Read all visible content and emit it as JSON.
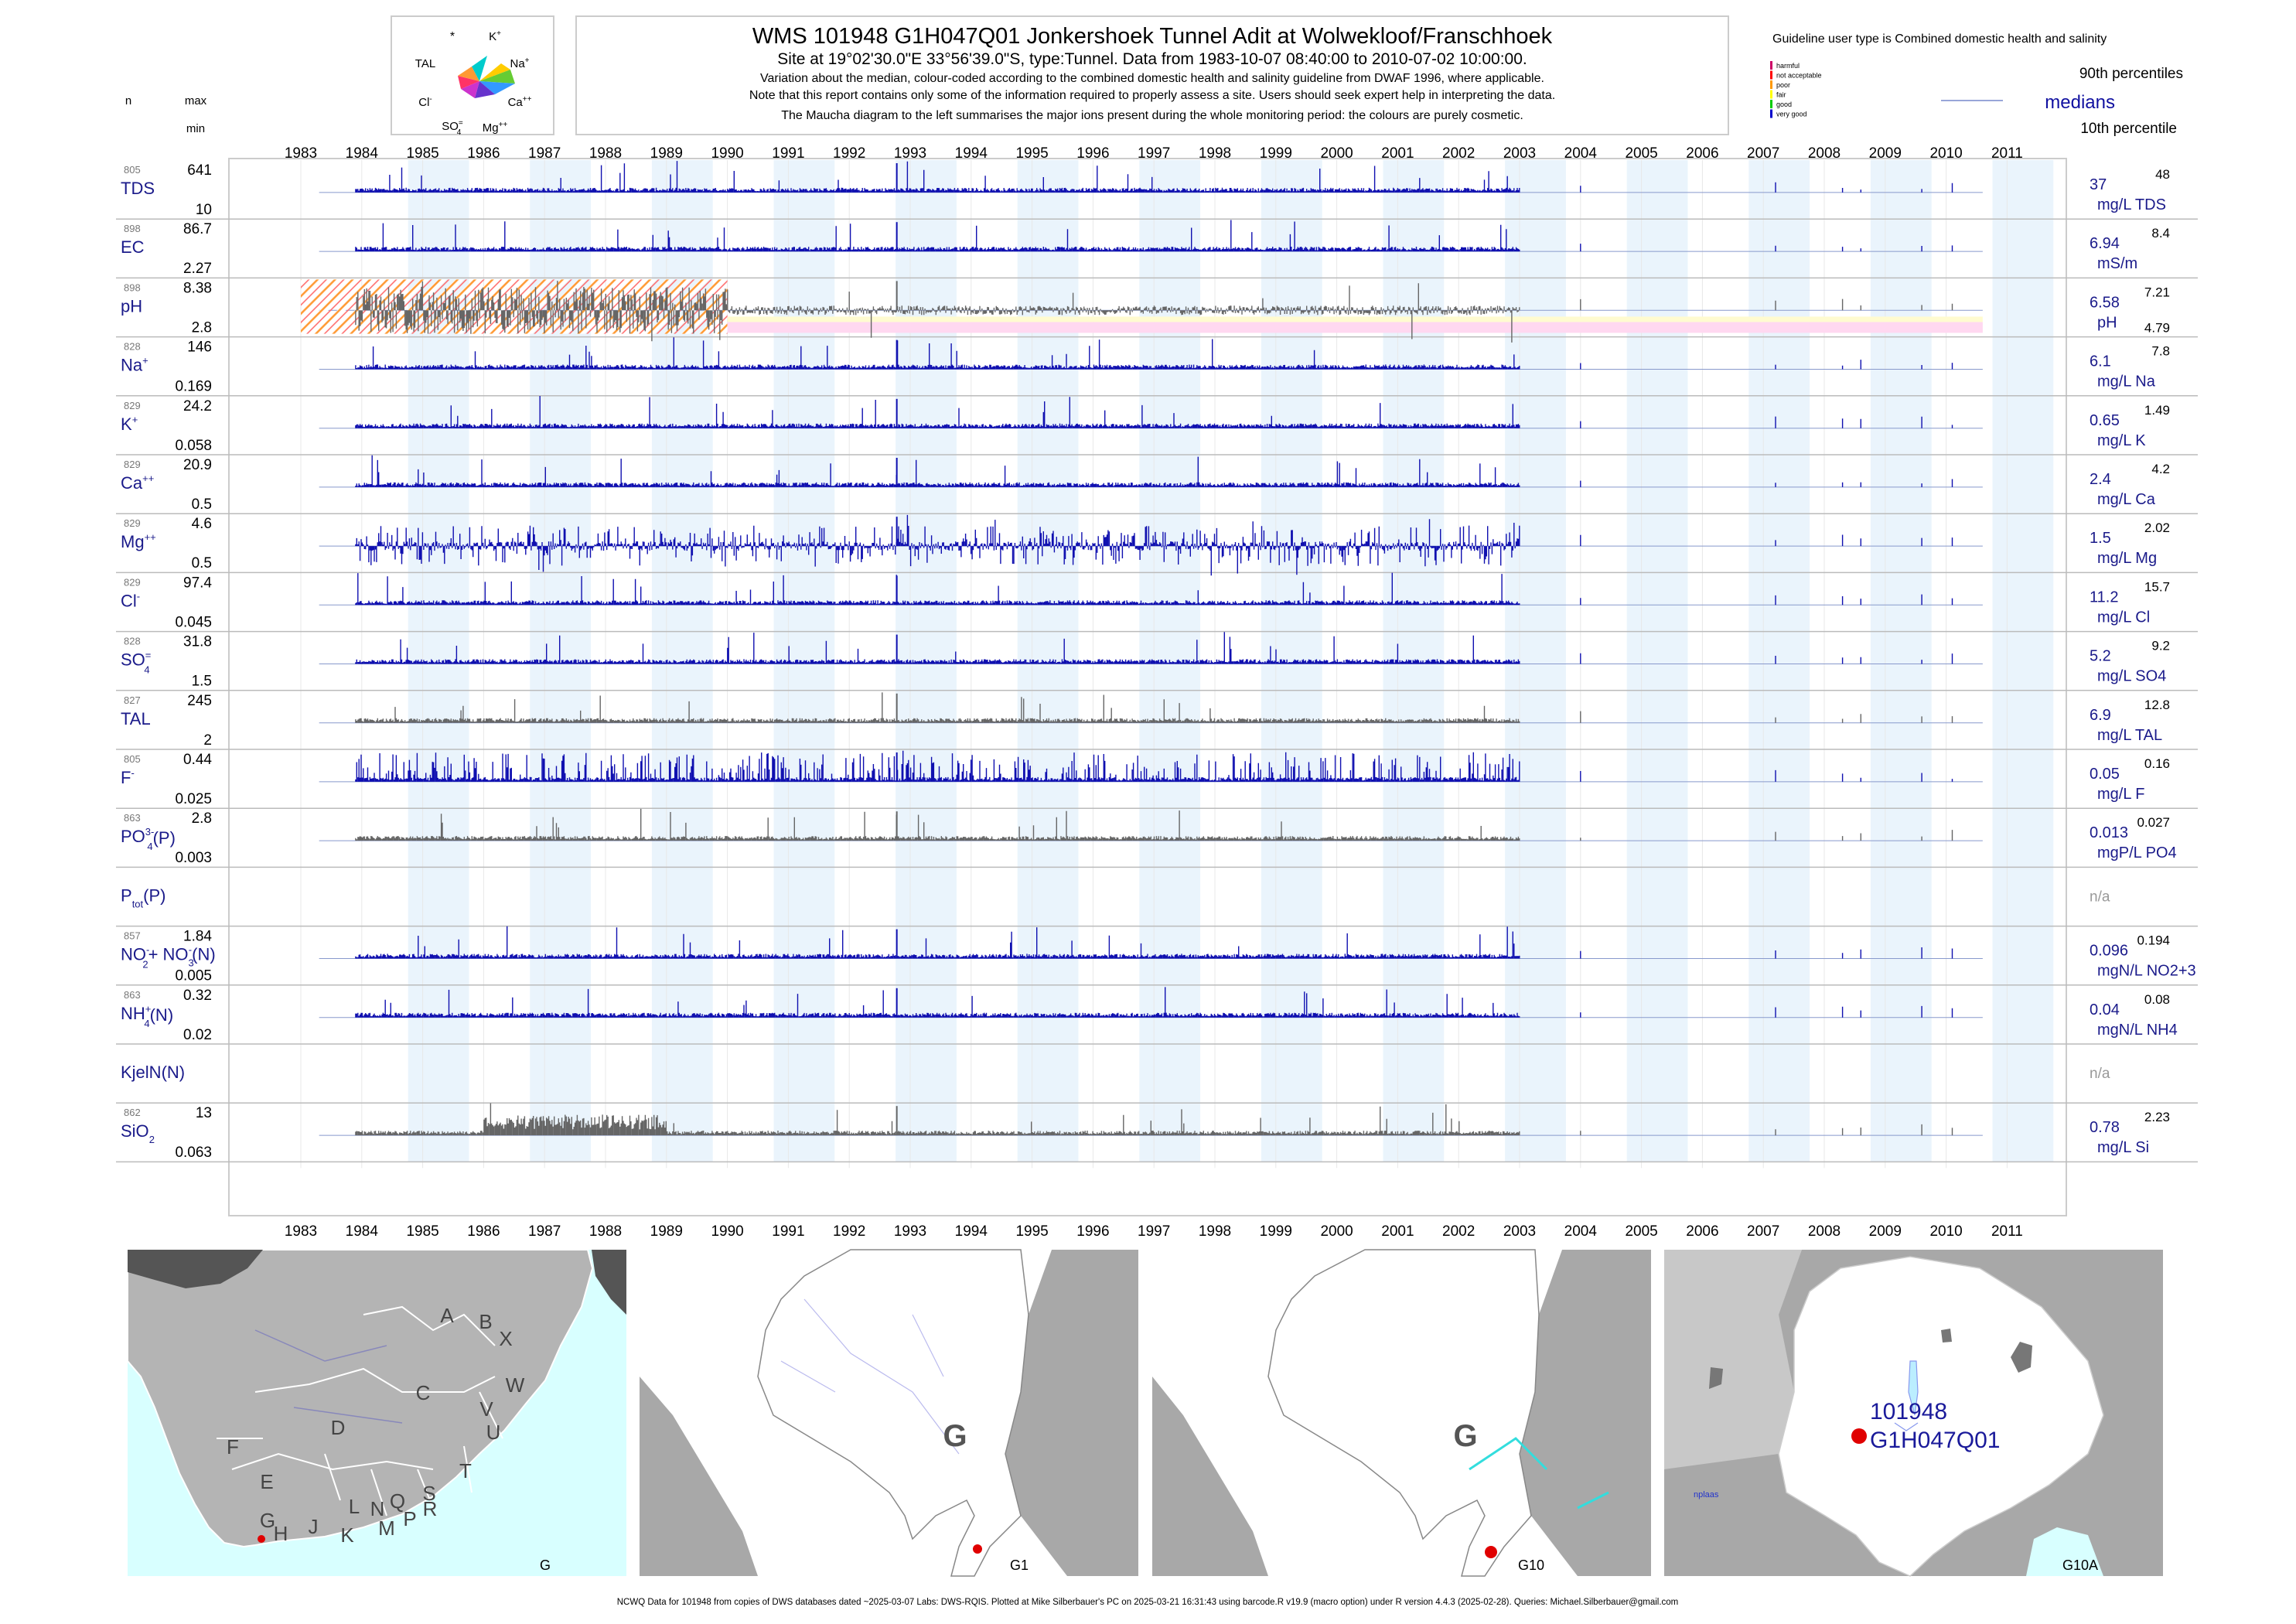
{
  "header": {
    "title": "WMS 101948 G1H047Q01 Jonkershoek Tunnel Adit at Wolwekloof/Franschhoek",
    "line1": "Site at 19°02'30.0\"E 33°56'39.0\"S, type:Tunnel.  Data from 1983-10-07 08:40:00 to 2010-07-02 10:00:00.",
    "line2": "Variation about the median,  colour-coded according to the combined domestic health and salinity guideline from DWAF 1996, where applicable.",
    "line3": "Note that this report contains only some of the information required to properly assess a site. Users should seek expert help in interpreting the data.",
    "line4": "The Maucha diagram to the left summarises the major ions present during the whole monitoring period: the colours are purely cosmetic."
  },
  "col_labels": {
    "n": "n",
    "max": "max",
    "min": "min"
  },
  "maucha": {
    "top_left": "*",
    "k": "K+",
    "tal": "TAL",
    "na": "Na+",
    "cl": "Cl-",
    "ca": "Ca++",
    "so4": "SO4=",
    "mg": "Mg++"
  },
  "guideline": {
    "title": "Guideline user type is Combined domestic health and salinity",
    "classes": [
      {
        "label": "harmful",
        "color": "#cc0066"
      },
      {
        "label": "not acceptable",
        "color": "#ff0000"
      },
      {
        "label": "poor",
        "color": "#ff9900"
      },
      {
        "label": "fair",
        "color": "#ffff00"
      },
      {
        "label": "good",
        "color": "#00cc00"
      },
      {
        "label": "very good",
        "color": "#0000cc"
      }
    ],
    "p90": "90th percentiles",
    "medians": "medians",
    "p10": "10th percentile"
  },
  "chart_data": {
    "type": "bar",
    "x_axis": {
      "start_year": 1983,
      "end_year": 2011,
      "tick_labels": [
        "1983",
        "1984",
        "1985",
        "1986",
        "1987",
        "1988",
        "1989",
        "1990",
        "1991",
        "1992",
        "1993",
        "1994",
        "1995",
        "1996",
        "1997",
        "1998",
        "1999",
        "2000",
        "2001",
        "2002",
        "2003",
        "2004",
        "2005",
        "2006",
        "2007",
        "2008",
        "2009",
        "2010",
        "2011"
      ]
    },
    "series": [
      {
        "key": "tds",
        "name": "TDS",
        "n": "805",
        "max": "641",
        "min": "10",
        "median": "37",
        "p90": "48",
        "unit": "mg/L TDS",
        "color": "#1010b0",
        "dense_until": 2003
      },
      {
        "key": "ec",
        "name": "EC",
        "n": "898",
        "max": "86.7",
        "min": "2.27",
        "median": "6.94",
        "p90": "8.4",
        "unit": "mS/m",
        "color": "#1010b0",
        "dense_until": 2003
      },
      {
        "key": "ph",
        "name": "pH",
        "n": "898",
        "max": "8.38",
        "min": "2.8",
        "median": "6.58",
        "p90": "7.21",
        "p10": "4.79",
        "unit": "pH",
        "color": "#666666",
        "dense_until": 2003
      },
      {
        "key": "na",
        "name": "Na",
        "sup": "+",
        "n": "828",
        "max": "146",
        "min": "0.169",
        "median": "6.1",
        "p90": "7.8",
        "unit": "mg/L Na",
        "color": "#1010b0",
        "dense_until": 2003
      },
      {
        "key": "k",
        "name": "K",
        "sup": "+",
        "n": "829",
        "max": "24.2",
        "min": "0.058",
        "median": "0.65",
        "p90": "1.49",
        "unit": "mg/L K",
        "color": "#1010b0",
        "dense_until": 2003
      },
      {
        "key": "ca",
        "name": "Ca",
        "sup": "++",
        "n": "829",
        "max": "20.9",
        "min": "0.5",
        "median": "2.4",
        "p90": "4.2",
        "unit": "mg/L Ca",
        "color": "#1010b0",
        "dense_until": 2003
      },
      {
        "key": "mg",
        "name": "Mg",
        "sup": "++",
        "n": "829",
        "max": "4.6",
        "min": "0.5",
        "median": "1.5",
        "p90": "2.02",
        "unit": "mg/L Mg",
        "color": "#1010b0",
        "dense_until": 2003
      },
      {
        "key": "cl",
        "name": "Cl",
        "sup": "-",
        "n": "829",
        "max": "97.4",
        "min": "0.045",
        "median": "11.2",
        "p90": "15.7",
        "unit": "mg/L Cl",
        "color": "#1010b0",
        "dense_until": 2003
      },
      {
        "key": "so4",
        "name": "SO",
        "sub": "4",
        "sup": "=",
        "n": "828",
        "max": "31.8",
        "min": "1.5",
        "median": "5.2",
        "p90": "9.2",
        "unit": "mg/L SO4",
        "color": "#1010b0",
        "dense_until": 2003
      },
      {
        "key": "tal",
        "name": "TAL",
        "n": "827",
        "max": "245",
        "min": "2",
        "median": "6.9",
        "p90": "12.8",
        "unit": "mg/L TAL",
        "color": "#666666",
        "dense_until": 2003
      },
      {
        "key": "f",
        "name": "F",
        "sup": "-",
        "n": "805",
        "max": "0.44",
        "min": "0.025",
        "median": "0.05",
        "p90": "0.16",
        "unit": "mg/L F",
        "color": "#1010b0",
        "dense_until": 2003
      },
      {
        "key": "po4",
        "name": "PO",
        "sub": "4",
        "sup": "3-",
        "suffix": "(P)",
        "n": "863",
        "max": "2.8",
        "min": "0.003",
        "median": "0.013",
        "p90": "0.027",
        "unit": "mgP/L PO4",
        "color": "#666666",
        "dense_until": 2003
      },
      {
        "key": "ptot",
        "name": "P",
        "sub": "tot",
        "suffix": "(P)",
        "na": "n/a"
      },
      {
        "key": "no23",
        "name": "NO",
        "sub": "2",
        "sup": "-",
        "name2": "+ NO",
        "sub2": "3",
        "sup2": "-",
        "suffix": "(N)",
        "n": "857",
        "max": "1.84",
        "min": "0.005",
        "median": "0.096",
        "p90": "0.194",
        "unit": "mgN/L NO2+3",
        "color": "#1010b0",
        "dense_until": 2003
      },
      {
        "key": "nh4",
        "name": "NH",
        "sub": "4",
        "sup": "+",
        "suffix": "(N)",
        "n": "863",
        "max": "0.32",
        "min": "0.02",
        "median": "0.04",
        "p90": "0.08",
        "unit": "mgN/L NH4",
        "color": "#1010b0",
        "dense_until": 2003
      },
      {
        "key": "kjel",
        "name": "KjelN(N)",
        "na": "n/a"
      },
      {
        "key": "sio2",
        "name": "SiO",
        "sub": "2",
        "n": "862",
        "max": "13",
        "min": "0.063",
        "median": "0.78",
        "p90": "2.23",
        "unit": "mg/L Si",
        "color": "#666666",
        "dense_until": 2003
      }
    ]
  },
  "maps": {
    "m1_caption": "G",
    "m1_regions": [
      "A",
      "B",
      "X",
      "C",
      "W",
      "D",
      "V",
      "U",
      "T",
      "F",
      "E",
      "G",
      "H",
      "J",
      "L",
      "N",
      "Q",
      "S",
      "K",
      "M",
      "P",
      "R"
    ],
    "m2_caption": "G1",
    "m2_region": "G",
    "m3_caption": "G10",
    "m3_region": "G",
    "m4_caption": "G10A",
    "m4_place": "nplaas",
    "m4_site1": "101948",
    "m4_site2": "G1H047Q01"
  },
  "footer": "NCWQ Data for 101948 from copies of DWS databases dated ~2025-03-07 Labs: DWS-RQIS. Plotted at Mike Silberbauer's PC on 2025-03-21 16:31:43 using barcode.R v19.9 (macro option) under R version 4.4.3 (2025-02-28). Queries: Michael.Silberbauer@gmail.com"
}
